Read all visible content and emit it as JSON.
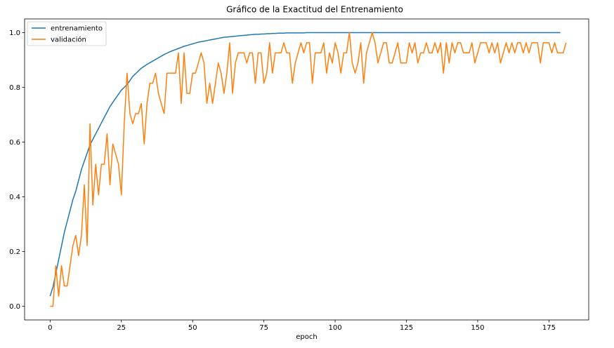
{
  "chart_data": {
    "type": "line",
    "title": "Gráfico de la Exactitud del Entrenamiento",
    "xlabel": "epoch",
    "ylabel": "",
    "xlim": [
      -8.95,
      188.95
    ],
    "ylim": [
      -0.05,
      1.05
    ],
    "xticks": [
      0,
      25,
      50,
      75,
      100,
      125,
      150,
      175
    ],
    "yticks": [
      0.0,
      0.2,
      0.4,
      0.6,
      0.8,
      1.0
    ],
    "ytick_labels": [
      "0.0",
      "0.2",
      "0.4",
      "0.6",
      "0.8",
      "1.0"
    ],
    "grid": false,
    "legend_position": "upper-left",
    "series": [
      {
        "name": "entrenamiento",
        "color": "#1f77b4",
        "values": [
          0.037,
          0.07,
          0.12,
          0.17,
          0.22,
          0.27,
          0.31,
          0.35,
          0.39,
          0.42,
          0.46,
          0.5,
          0.53,
          0.56,
          0.59,
          0.61,
          0.63,
          0.65,
          0.67,
          0.69,
          0.71,
          0.73,
          0.745,
          0.76,
          0.775,
          0.79,
          0.8,
          0.81,
          0.825,
          0.84,
          0.85,
          0.86,
          0.87,
          0.877,
          0.884,
          0.89,
          0.896,
          0.902,
          0.908,
          0.914,
          0.92,
          0.925,
          0.93,
          0.934,
          0.938,
          0.942,
          0.946,
          0.95,
          0.953,
          0.956,
          0.959,
          0.962,
          0.965,
          0.967,
          0.969,
          0.971,
          0.973,
          0.975,
          0.977,
          0.979,
          0.981,
          0.983,
          0.984,
          0.985,
          0.986,
          0.987,
          0.988,
          0.989,
          0.99,
          0.991,
          0.992,
          0.993,
          0.994,
          0.994,
          0.995,
          0.995,
          0.996,
          0.996,
          0.997,
          0.997,
          0.998,
          0.998,
          0.998,
          0.999,
          0.999,
          0.999,
          0.999,
          0.999,
          0.999,
          0.999,
          1.0,
          1.0,
          1.0,
          1.0,
          1.0,
          1.0,
          1.0,
          1.0,
          1.0,
          1.0,
          1.0,
          1.0,
          1.0,
          1.0,
          1.0,
          1.0,
          1.0,
          1.0,
          1.0,
          1.0,
          1.0,
          1.0,
          1.0,
          1.0,
          1.0,
          1.0,
          1.0,
          1.0,
          1.0,
          1.0,
          1.0,
          1.0,
          1.0,
          1.0,
          1.0,
          1.0,
          1.0,
          1.0,
          1.0,
          1.0,
          1.0,
          1.0,
          1.0,
          1.0,
          1.0,
          1.0,
          1.0,
          1.0,
          1.0,
          1.0,
          1.0,
          1.0,
          1.0,
          1.0,
          1.0,
          1.0,
          1.0,
          1.0,
          1.0,
          1.0,
          1.0,
          1.0,
          1.0,
          1.0,
          1.0,
          1.0,
          1.0,
          1.0,
          1.0,
          1.0,
          1.0,
          1.0,
          1.0,
          1.0,
          1.0,
          1.0,
          1.0,
          1.0,
          1.0,
          1.0,
          1.0,
          1.0,
          1.0,
          1.0,
          1.0,
          1.0,
          1.0,
          1.0,
          1.0,
          1.0
        ]
      },
      {
        "name": "validación",
        "color": "#ff7f0e",
        "values": [
          0.0,
          0.0,
          0.148,
          0.037,
          0.148,
          0.074,
          0.074,
          0.148,
          0.222,
          0.259,
          0.185,
          0.259,
          0.444,
          0.222,
          0.667,
          0.37,
          0.519,
          0.407,
          0.519,
          0.519,
          0.63,
          0.444,
          0.593,
          0.556,
          0.519,
          0.407,
          0.667,
          0.852,
          0.704,
          0.667,
          0.704,
          0.704,
          0.741,
          0.593,
          0.741,
          0.815,
          0.815,
          0.852,
          0.778,
          0.741,
          0.704,
          0.852,
          0.852,
          0.852,
          0.852,
          0.926,
          0.741,
          0.926,
          0.778,
          0.778,
          0.852,
          0.852,
          0.889,
          0.926,
          0.889,
          0.741,
          0.815,
          0.741,
          0.815,
          0.889,
          0.852,
          0.778,
          0.852,
          0.963,
          0.778,
          0.889,
          0.926,
          0.926,
          0.926,
          0.889,
          0.926,
          0.926,
          0.815,
          0.926,
          0.926,
          0.815,
          0.852,
          0.963,
          0.852,
          0.926,
          0.926,
          0.926,
          0.963,
          0.926,
          0.926,
          0.815,
          0.889,
          0.926,
          0.963,
          0.926,
          0.963,
          0.963,
          0.815,
          0.926,
          0.926,
          0.926,
          0.963,
          0.852,
          0.926,
          0.889,
          0.963,
          0.926,
          0.852,
          0.926,
          0.926,
          1.0,
          0.889,
          0.852,
          0.889,
          0.963,
          0.815,
          0.926,
          0.963,
          1.0,
          0.963,
          0.889,
          0.926,
          0.963,
          0.963,
          0.889,
          0.889,
          0.926,
          0.963,
          0.889,
          0.889,
          0.889,
          0.963,
          0.926,
          0.963,
          0.889,
          0.926,
          0.926,
          0.963,
          0.926,
          0.926,
          0.963,
          0.926,
          0.963,
          0.852,
          0.963,
          0.889,
          0.963,
          0.926,
          0.963,
          0.963,
          0.926,
          0.926,
          0.926,
          0.963,
          0.889,
          0.926,
          0.963,
          0.963,
          0.963,
          0.926,
          0.963,
          0.926,
          0.963,
          0.889,
          0.926,
          0.963,
          0.926,
          0.963,
          0.926,
          0.963,
          0.963,
          0.926,
          0.963,
          0.926,
          0.963,
          0.963,
          0.963,
          0.889,
          0.963,
          0.963,
          0.963,
          0.926,
          0.963,
          0.926,
          0.926,
          0.926,
          0.963
        ]
      }
    ]
  }
}
